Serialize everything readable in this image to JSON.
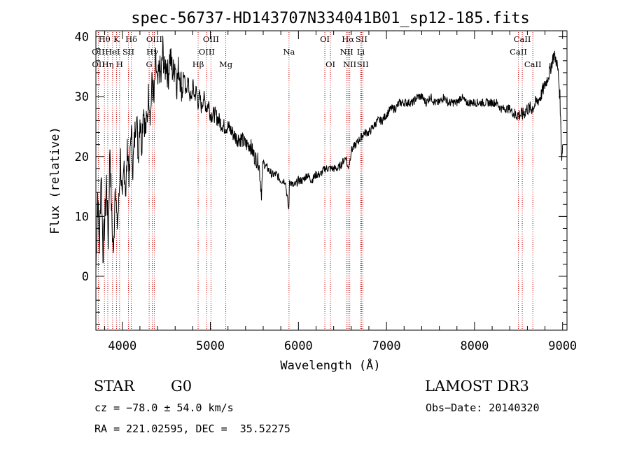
{
  "chart_data": {
    "type": "line",
    "title": "spec-56737-HD143707N334041B01_sp12-185.fits",
    "xlabel": "Wavelength (Å)",
    "ylabel": "Flux (relative)",
    "xlim": [
      3700,
      9050
    ],
    "ylim": [
      -9,
      41
    ],
    "xticks": [
      4000,
      5000,
      6000,
      7000,
      8000,
      9000
    ],
    "yticks": [
      0,
      10,
      20,
      30,
      40
    ],
    "grid": false,
    "series": [
      {
        "x": [
          3700,
          3720,
          3740,
          3760,
          3780,
          3800,
          3820,
          3840,
          3860,
          3880,
          3900,
          3920,
          3940,
          3960,
          3980,
          4000,
          4020,
          4040,
          4060,
          4080,
          4100,
          4120,
          4140,
          4160,
          4180,
          4200,
          4220,
          4240,
          4260,
          4280,
          4300,
          4320,
          4340,
          4360,
          4380,
          4400,
          4420,
          4440,
          4460,
          4480,
          4500,
          4520,
          4540,
          4560,
          4580,
          4600,
          4620,
          4640,
          4660,
          4680,
          4700,
          4720,
          4740,
          4760,
          4780,
          4800,
          4820,
          4840,
          4860,
          4880,
          4900,
          4920,
          4940,
          4960,
          4980,
          5000,
          5050,
          5100,
          5150,
          5200,
          5250,
          5300,
          5350,
          5400,
          5450,
          5500,
          5550,
          5580,
          5600,
          5650,
          5700,
          5750,
          5800,
          5850,
          5890,
          5900,
          5950,
          6000,
          6050,
          6100,
          6150,
          6200,
          6250,
          6300,
          6350,
          6400,
          6450,
          6500,
          6540,
          6560,
          6580,
          6600,
          6650,
          6700,
          6750,
          6800,
          6850,
          6900,
          6950,
          7000,
          7050,
          7100,
          7150,
          7200,
          7250,
          7300,
          7350,
          7400,
          7450,
          7500,
          7550,
          7600,
          7650,
          7700,
          7750,
          7800,
          7850,
          7900,
          7950,
          8000,
          8050,
          8100,
          8150,
          8200,
          8250,
          8300,
          8350,
          8400,
          8450,
          8500,
          8550,
          8600,
          8650,
          8700,
          8750,
          8800,
          8850,
          8900,
          8930,
          8950,
          8970,
          8990,
          9000
        ],
        "y": [
          1,
          14,
          5,
          18,
          4,
          9,
          16,
          6,
          22,
          10,
          3,
          17,
          8,
          12,
          20,
          11,
          19,
          14,
          22,
          16,
          25,
          18,
          23,
          28,
          20,
          27,
          22,
          29,
          24,
          26,
          31,
          27,
          33,
          29,
          36,
          31,
          35,
          33,
          38,
          34,
          36,
          33,
          37,
          35,
          34,
          36,
          32,
          35,
          33,
          31,
          34,
          30,
          33,
          31,
          29,
          32,
          30,
          31,
          29,
          30,
          28,
          30,
          29,
          28,
          29,
          27,
          27,
          26,
          25,
          25,
          24,
          23,
          23,
          22,
          22,
          20,
          19,
          14,
          19,
          18,
          17,
          17,
          16,
          16,
          11,
          16,
          15,
          16,
          16,
          17,
          16,
          17,
          17,
          18,
          18,
          18,
          18,
          19,
          20,
          18,
          19,
          21,
          22,
          23,
          24,
          24,
          25,
          26,
          26,
          27,
          28,
          28,
          29,
          29,
          29,
          29,
          30,
          30,
          29,
          30,
          29,
          29,
          30,
          29,
          29,
          29,
          30,
          29,
          29,
          29,
          29,
          29,
          29,
          29,
          29,
          28,
          28,
          28,
          27,
          27,
          27,
          28,
          28,
          29,
          30,
          32,
          34,
          37,
          36,
          34,
          30,
          20,
          22
        ]
      }
    ],
    "lines": [
      {
        "name": "Hθ",
        "x": 3797,
        "row": 0
      },
      {
        "name": "OII",
        "x": 3727,
        "row": 1
      },
      {
        "name": "OII",
        "x": 3729,
        "row": 2
      },
      {
        "name": "Hη",
        "x": 3835,
        "row": 2
      },
      {
        "name": "K",
        "x": 3934,
        "row": 0
      },
      {
        "name": "HeI",
        "x": 3889,
        "row": 1
      },
      {
        "name": "H",
        "x": 3969,
        "row": 2
      },
      {
        "name": "SII",
        "x": 4070,
        "row": 1
      },
      {
        "name": "Hδ",
        "x": 4102,
        "row": 0
      },
      {
        "name": "OIII",
        "x": 4363,
        "row": 0
      },
      {
        "name": "Hγ",
        "x": 4340,
        "row": 1
      },
      {
        "name": "G",
        "x": 4305,
        "row": 2
      },
      {
        "name": "Hβ",
        "x": 4861,
        "row": 2
      },
      {
        "name": "OIII",
        "x": 5007,
        "row": 0
      },
      {
        "name": "OIII",
        "x": 4959,
        "row": 1
      },
      {
        "name": "Mg",
        "x": 5175,
        "row": 2
      },
      {
        "name": "Na",
        "x": 5893,
        "row": 1
      },
      {
        "name": "OI",
        "x": 6300,
        "row": 0
      },
      {
        "name": "OI",
        "x": 6364,
        "row": 2
      },
      {
        "name": "Hα",
        "x": 6563,
        "row": 0
      },
      {
        "name": "NII",
        "x": 6548,
        "row": 1
      },
      {
        "name": "NII",
        "x": 6583,
        "row": 2
      },
      {
        "name": "SII",
        "x": 6716,
        "row": 0
      },
      {
        "name": "Li",
        "x": 6708,
        "row": 1
      },
      {
        "name": "SII",
        "x": 6731,
        "row": 2
      },
      {
        "name": "CaII",
        "x": 8542,
        "row": 0
      },
      {
        "name": "CaII",
        "x": 8498,
        "row": 1
      },
      {
        "name": "CaII",
        "x": 8662,
        "row": 2
      }
    ],
    "line_color": "#000000",
    "marker_color": "#cc0000"
  },
  "info": {
    "object_type": "STAR",
    "subclass": "G0",
    "survey": "LAMOST DR3",
    "cz": "cz = −78.0 ± 54.0 km/s",
    "obs_date": "Obs−Date: 20140320",
    "radec": "RA = 221.02595, DEC =  35.52275"
  }
}
